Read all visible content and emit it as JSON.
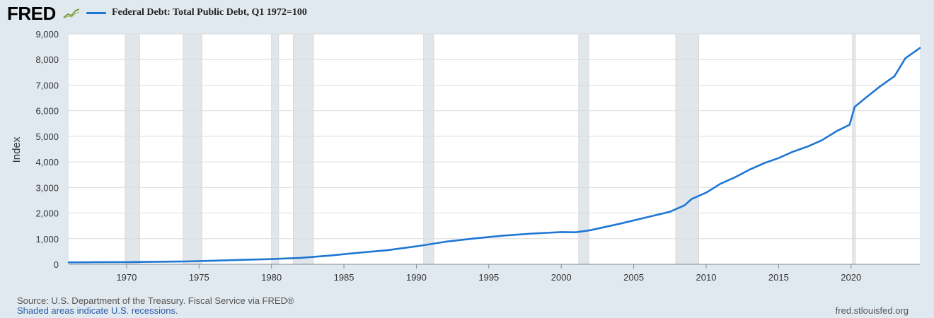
{
  "header": {
    "logo": "FRED",
    "logo_icon": "chart-trend-icon",
    "legend_label": "Federal Debt: Total Public Debt, Q1 1972=100"
  },
  "footer": {
    "source": "Source: U.S. Department of the Treasury. Fiscal Service via FRED®",
    "recession_note": "Shaded areas indicate U.S. recessions.",
    "url": "fred.stlouisfed.org"
  },
  "colors": {
    "line": "#1f77d4",
    "recession": "#e1e6eb",
    "background": "#e1e9f0",
    "grid": "#dcdcdc"
  },
  "chart_data": {
    "type": "line",
    "title": "",
    "xlabel": "",
    "ylabel": "Index",
    "xlim": [
      1966,
      2024.75
    ],
    "ylim": [
      0,
      9000
    ],
    "y_ticks": [
      0,
      1000,
      2000,
      3000,
      4000,
      5000,
      6000,
      7000,
      8000,
      9000
    ],
    "y_tick_labels": [
      "0",
      "1,000",
      "2,000",
      "3,000",
      "4,000",
      "5,000",
      "6,000",
      "7,000",
      "8,000",
      "9,000"
    ],
    "x_ticks": [
      1970,
      1975,
      1980,
      1985,
      1990,
      1995,
      2000,
      2005,
      2010,
      2015,
      2020
    ],
    "x_tick_labels": [
      "1970",
      "1975",
      "1980",
      "1985",
      "1990",
      "1995",
      "2000",
      "2005",
      "2010",
      "2015",
      "2020"
    ],
    "grid": true,
    "legend_position": "top-left",
    "recessions": [
      [
        1969.9,
        1970.9
      ],
      [
        1973.9,
        1975.2
      ],
      [
        1980.0,
        1980.5
      ],
      [
        1981.5,
        1982.9
      ],
      [
        1990.5,
        1991.2
      ],
      [
        2001.2,
        2001.9
      ],
      [
        2007.9,
        2009.5
      ],
      [
        2020.1,
        2020.3
      ]
    ],
    "series": [
      {
        "name": "Federal Debt: Total Public Debt, Q1 1972=100",
        "points": [
          [
            1966.0,
            75
          ],
          [
            1968.0,
            80
          ],
          [
            1970.0,
            85
          ],
          [
            1972.0,
            100
          ],
          [
            1974.0,
            110
          ],
          [
            1976.0,
            140
          ],
          [
            1978.0,
            175
          ],
          [
            1980.0,
            205
          ],
          [
            1982.0,
            250
          ],
          [
            1984.0,
            340
          ],
          [
            1986.0,
            450
          ],
          [
            1988.0,
            550
          ],
          [
            1990.0,
            700
          ],
          [
            1992.0,
            880
          ],
          [
            1994.0,
            1010
          ],
          [
            1996.0,
            1120
          ],
          [
            1998.0,
            1200
          ],
          [
            2000.0,
            1260
          ],
          [
            2001.0,
            1250
          ],
          [
            2002.0,
            1330
          ],
          [
            2004.0,
            1580
          ],
          [
            2006.0,
            1850
          ],
          [
            2007.5,
            2050
          ],
          [
            2008.5,
            2300
          ],
          [
            2009.0,
            2550
          ],
          [
            2010.0,
            2800
          ],
          [
            2011.0,
            3150
          ],
          [
            2012.0,
            3400
          ],
          [
            2013.0,
            3700
          ],
          [
            2014.0,
            3950
          ],
          [
            2015.0,
            4150
          ],
          [
            2016.0,
            4400
          ],
          [
            2017.0,
            4600
          ],
          [
            2018.0,
            4850
          ],
          [
            2019.0,
            5200
          ],
          [
            2019.9,
            5450
          ],
          [
            2020.25,
            6150
          ],
          [
            2021.0,
            6500
          ],
          [
            2022.0,
            6950
          ],
          [
            2023.0,
            7350
          ],
          [
            2023.75,
            8050
          ],
          [
            2024.75,
            8450
          ]
        ]
      }
    ]
  }
}
